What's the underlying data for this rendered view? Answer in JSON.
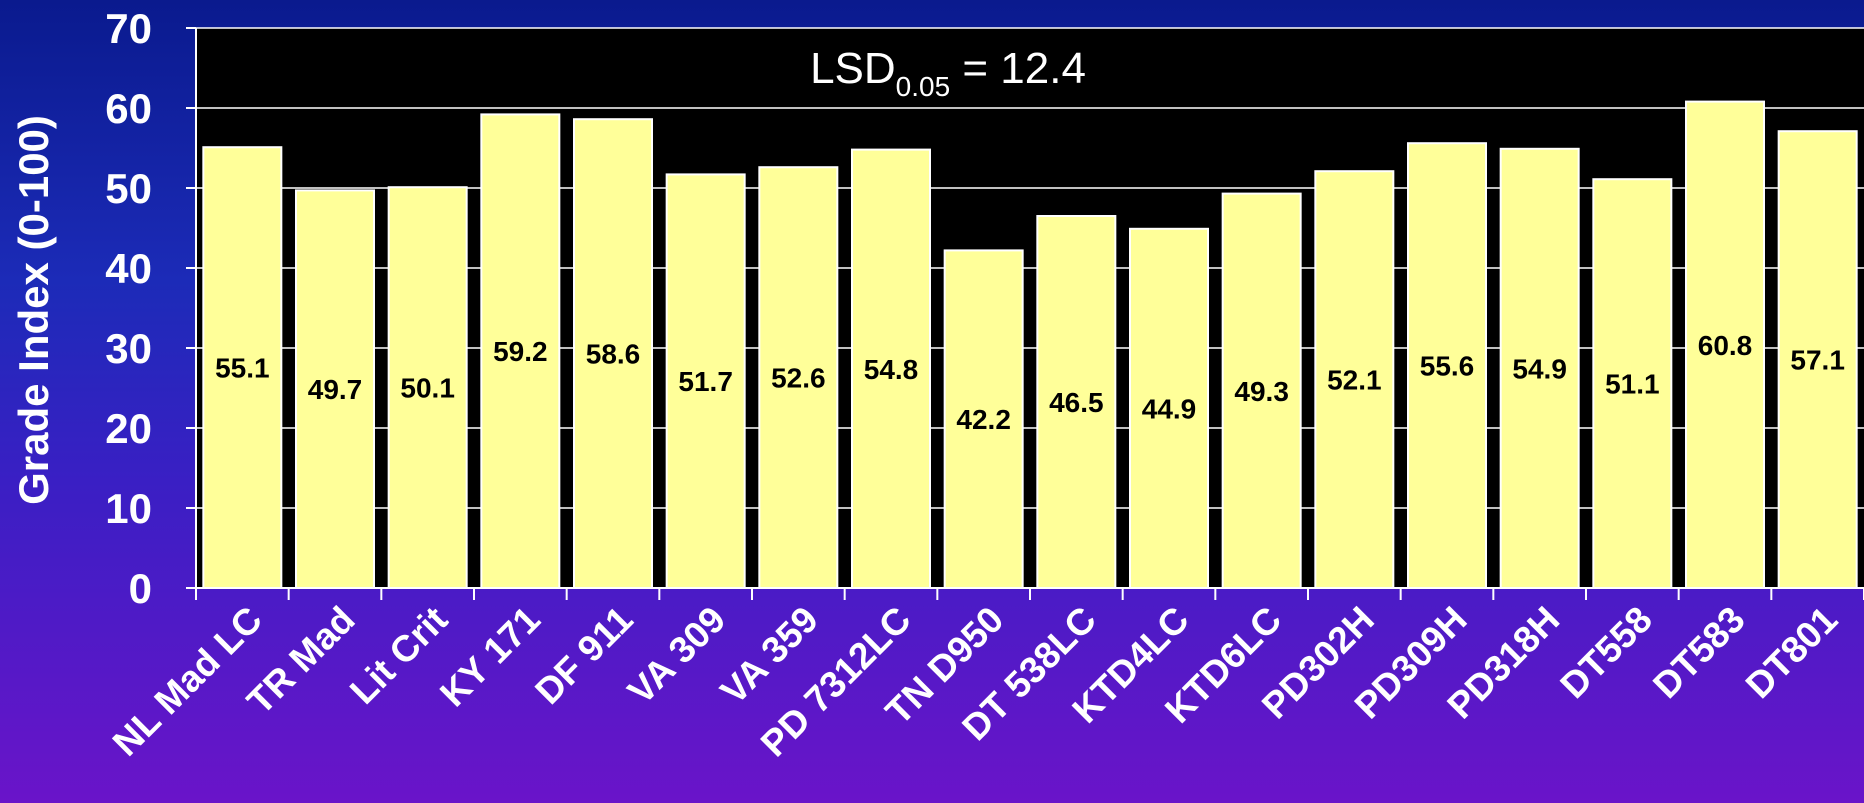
{
  "chart_data": {
    "type": "bar",
    "title": "",
    "xlabel": "",
    "ylabel": "Grade Index (0-100)",
    "ylim": [
      0,
      70
    ],
    "yticks": [
      0,
      10,
      20,
      30,
      40,
      50,
      60,
      70
    ],
    "grid": "horizontal",
    "categories": [
      "NL Mad LC",
      "TR Mad",
      "Lit Crit",
      "KY 171",
      "DF 911",
      "VA 309",
      "VA 359",
      "PD 7312LC",
      "TN D950",
      "DT 538LC",
      "KTD4LC",
      "KTD6LC",
      "PD302H",
      "PD309H",
      "PD318H",
      "DT558",
      "DT583",
      "DT801"
    ],
    "values": [
      55.1,
      49.7,
      50.1,
      59.2,
      58.6,
      51.7,
      52.6,
      54.8,
      42.2,
      46.5,
      44.9,
      49.3,
      52.1,
      55.6,
      54.9,
      51.1,
      60.8,
      57.1
    ],
    "value_labels": [
      "55.1",
      "49.7",
      "50.1",
      "59.2",
      "58.6",
      "51.7",
      "52.6",
      "54.8",
      "42.2",
      "46.5",
      "44.9",
      "49.3",
      "52.1",
      "55.6",
      "54.9",
      "51.1",
      "60.8",
      "57.1"
    ],
    "annotation": {
      "prefix": "LSD",
      "subscript": "0.05",
      "suffix": " = 12.4"
    },
    "colors": {
      "bar_fill": "#ffff99",
      "bar_stroke": "#ffffff",
      "plot_background": "#000000",
      "grid": "#ffffff",
      "text": "#ffffff",
      "label_text": "#000000"
    }
  }
}
